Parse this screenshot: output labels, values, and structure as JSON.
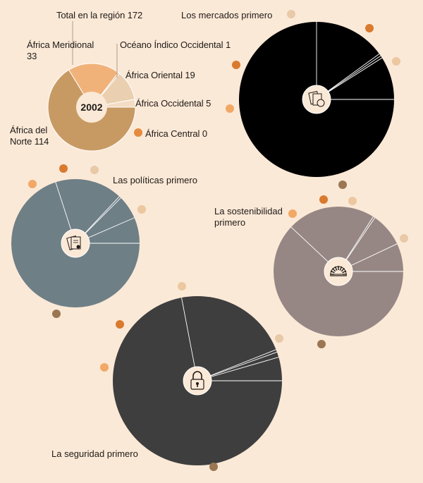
{
  "chart_data": [
    {
      "type": "pie",
      "title": "2002",
      "total_label": "Total en la región 172",
      "categories": [
        "África del Norte",
        "África Meridional",
        "Océano Índico Occidental",
        "África Oriental",
        "África Occidental",
        "África Central"
      ],
      "values": [
        114,
        33,
        1,
        19,
        5,
        0
      ],
      "colors": [
        "#c89a63",
        "#f1b27a",
        "#e0b890",
        "#ead0b0",
        "#f3dcc3",
        "#e58b3f"
      ],
      "labels": [
        "África del Norte 114",
        "África Meridional 33",
        "Océano Índico Occidental 1",
        "África Oriental 19",
        "África Occidental 5",
        "África Central 0"
      ]
    },
    {
      "type": "pie",
      "title": "Los mercados primero",
      "categories": [
        "África del Norte",
        "África Meridional",
        "Océano Índico Occidental",
        "África Oriental",
        "África Occidental",
        "África Central"
      ],
      "values": [
        0.75,
        0.15,
        0.005,
        0.005,
        0.09,
        0
      ],
      "color": "#000000",
      "icon": "market-documents-icon"
    },
    {
      "type": "pie",
      "title": "Las políticas primero",
      "categories": [
        "África del Norte",
        "África Meridional",
        "Océano Índico Occidental",
        "África Oriental",
        "África Occidental",
        "África Central"
      ],
      "values": [
        0.7,
        0.17,
        0.005,
        0.06,
        0.065,
        0
      ],
      "color": "#6e7f86",
      "icon": "policy-documents-icon"
    },
    {
      "type": "pie",
      "title": "La sostenibilidad primero",
      "categories": [
        "África del Norte",
        "África Meridional",
        "Océano Índico Occidental",
        "África Oriental",
        "África Occidental",
        "África Central"
      ],
      "values": [
        0.62,
        0.22,
        0.005,
        0.085,
        0.07,
        0
      ],
      "color": "#968785",
      "icon": "sunrise-icon"
    },
    {
      "type": "pie",
      "title": "La seguridad primero",
      "categories": [
        "África del Norte",
        "África Meridional",
        "Océano Índico Occidental",
        "África Oriental",
        "África Occidental",
        "África Central"
      ],
      "values": [
        0.72,
        0.22,
        0.005,
        0.01,
        0.045,
        0
      ],
      "color": "#3e3e3e",
      "icon": "padlock-icon"
    }
  ],
  "marker_colors": {
    "north": "#9b7653",
    "southern": "#f2a866",
    "indian": "#d97a2e",
    "eastern": "#e8c9a8",
    "western": "#ecc7a0",
    "central": "#e58b3f"
  },
  "background": "#fbe9d7",
  "separator_color": "#ffffff"
}
